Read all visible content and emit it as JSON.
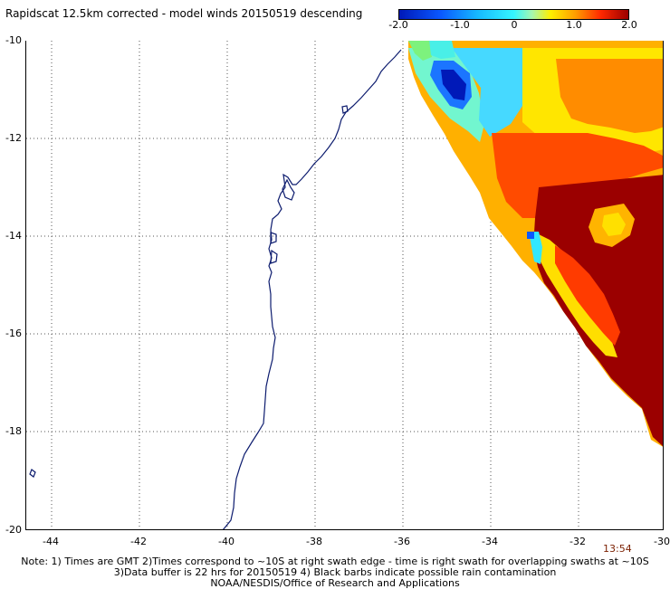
{
  "title": "Rapidscat 12.5km corrected - model winds 20150519 descending",
  "legend": {
    "ticks": [
      "-2.0",
      "-1.0",
      "0",
      "1.0",
      "2.0"
    ],
    "colors": [
      "#0019b8",
      "#0a58ff",
      "#16b8ff",
      "#35f6ff",
      "#a6f7af",
      "#fff000",
      "#ff9c00",
      "#ff2800",
      "#9a0000"
    ]
  },
  "axes": {
    "x_ticks": [
      "-44",
      "-42",
      "-40",
      "-38",
      "-36",
      "-34",
      "-32",
      "-30"
    ],
    "y_ticks": [
      "-10",
      "-12",
      "-14",
      "-16",
      "-18",
      "-20"
    ]
  },
  "time_label": "13:54",
  "notes": [
    "Note: 1) Times are GMT 2)Times correspond to ~10S at right swath edge - time is right swath for overlapping swaths at ~10S",
    "3)Data buffer is 22 hrs for 20150519 4) Black barbs indicate possible rain contamination",
    "NOAA/NESDIS/Office of Research and Applications"
  ]
}
